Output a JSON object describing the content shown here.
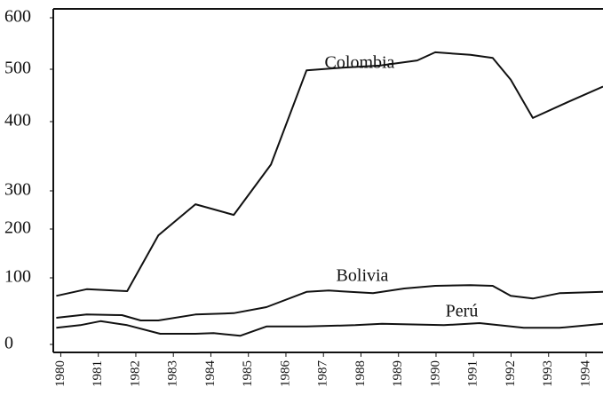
{
  "chart_data": {
    "type": "line",
    "xlim": [
      1979.8,
      1994.45
    ],
    "xticks": [
      1980,
      1981,
      1982,
      1983,
      1984,
      1985,
      1986,
      1987,
      1988,
      1989,
      1990,
      1991,
      1992,
      1993,
      1994
    ],
    "ylim": [
      0,
      600
    ],
    "yticks": [
      0,
      100,
      200,
      300,
      400,
      500,
      600
    ],
    "color": "#111111",
    "series": [
      {
        "name": "Colombia",
        "x": [
          1979.88,
          1980.69,
          1981.77,
          1982.6,
          1983.59,
          1984.61,
          1985.6,
          1986.55,
          1987.5,
          1988.5,
          1989.5,
          1989.98,
          1990.92,
          1991.51,
          1991.99,
          1992.58,
          1993.5,
          1994.45
        ],
        "values": [
          73,
          83,
          80,
          187,
          265,
          237,
          338,
          498,
          503,
          507,
          517,
          533,
          528,
          522,
          480,
          407,
          437,
          467
        ]
      },
      {
        "name": "Bolivia",
        "x": [
          1979.88,
          1980.69,
          1981.63,
          1982.13,
          1982.6,
          1983.59,
          1984.61,
          1985.48,
          1986.55,
          1987.14,
          1988.32,
          1989.15,
          1989.98,
          1990.92,
          1991.51,
          1991.99,
          1992.58,
          1993.29,
          1994.45
        ],
        "values": [
          40,
          45,
          44,
          36,
          36,
          45,
          47,
          56,
          79,
          81,
          77,
          84,
          88,
          89,
          88,
          73,
          69,
          77,
          79
        ]
      },
      {
        "name": "Perú",
        "x": [
          1979.88,
          1980.52,
          1981.06,
          1981.77,
          1982.65,
          1983.59,
          1984.07,
          1984.78,
          1985.48,
          1986.55,
          1987.85,
          1988.56,
          1990.21,
          1991.16,
          1992.34,
          1993.29,
          1994.45
        ],
        "values": [
          25,
          29,
          35,
          29,
          16,
          16,
          17,
          13,
          27,
          27,
          29,
          31,
          29,
          32,
          25,
          25,
          31
        ]
      }
    ]
  }
}
